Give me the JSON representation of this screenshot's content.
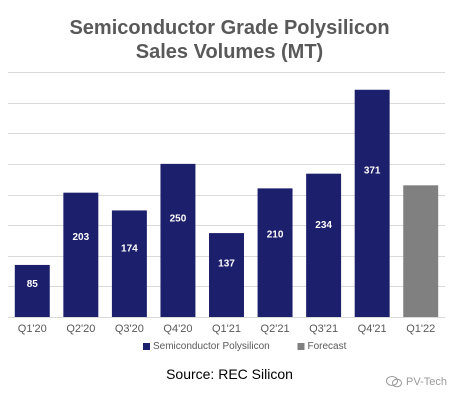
{
  "chart_data": {
    "type": "bar",
    "title_lines": [
      "Semiconductor Grade Polysilicon",
      "Sales Volumes (MT)"
    ],
    "categories": [
      "Q1'20",
      "Q2'20",
      "Q3'20",
      "Q4'20",
      "Q1'21",
      "Q2'21",
      "Q3'21",
      "Q4'21",
      "Q1'22"
    ],
    "series": [
      {
        "name": "Semiconductor Polysilicon",
        "color": "#1c1f6b",
        "values": [
          85,
          203,
          174,
          250,
          137,
          210,
          234,
          371,
          null
        ],
        "labels": [
          "85",
          "203",
          "174",
          "250",
          "137",
          "210",
          "234",
          "371",
          ""
        ]
      },
      {
        "name": "Forecast",
        "color": "#808080",
        "values": [
          null,
          null,
          null,
          null,
          null,
          null,
          null,
          null,
          215
        ],
        "labels": [
          "",
          "",
          "",
          "",
          "",
          "",
          "",
          "",
          ""
        ]
      }
    ],
    "ylim": [
      0,
      400
    ],
    "grid": true,
    "legend": "bottom"
  },
  "source": "Source: REC Silicon",
  "watermark": "PV-Tech",
  "colors": {
    "title": "#595959",
    "grid": "#d9d9d9",
    "axis_text": "#595959"
  }
}
